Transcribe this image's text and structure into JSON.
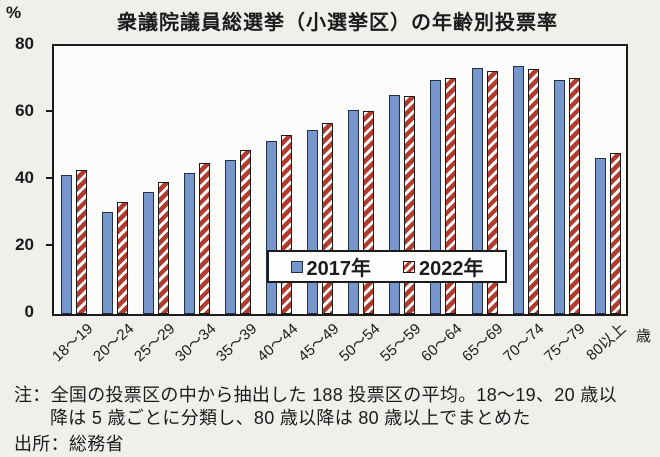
{
  "chart_data": {
    "type": "bar",
    "title": "衆議院議員総選挙（小選挙区）の年齢別投票率",
    "y_unit": "%",
    "x_unit": "歳",
    "xlabel": "",
    "ylabel": "%",
    "ylim": [
      0,
      80
    ],
    "yticks": [
      0,
      20,
      40,
      60,
      80
    ],
    "grid": false,
    "legend_position": "inside-bottom-center",
    "categories": [
      "18～19",
      "20～24",
      "25～29",
      "30～34",
      "35～39",
      "40～44",
      "45～49",
      "50～54",
      "55～59",
      "60～64",
      "65～69",
      "70～74",
      "75～79",
      "80以上"
    ],
    "series": [
      {
        "name": "2017年",
        "style": "solid",
        "color": "#7796cb",
        "values": [
          41.5,
          30.5,
          36.5,
          42.0,
          46.0,
          51.5,
          55.0,
          61.0,
          65.5,
          70.0,
          73.5,
          74.0,
          70.0,
          46.5
        ]
      },
      {
        "name": "2022年",
        "style": "diagonal-stripes",
        "color": "#b23b2e",
        "values": [
          43.0,
          33.5,
          39.5,
          45.0,
          49.0,
          53.5,
          57.0,
          60.5,
          65.0,
          70.5,
          72.5,
          73.0,
          70.5,
          48.0
        ]
      }
    ]
  },
  "notes": {
    "line1": "注：全国の投票区の中から抽出した 188 投票区の平均。18～19、20 歳以",
    "line2": "降は 5 歳ごとに分類し、80 歳以降は 80 歳以上でまとめた",
    "source": "出所：総務省"
  }
}
